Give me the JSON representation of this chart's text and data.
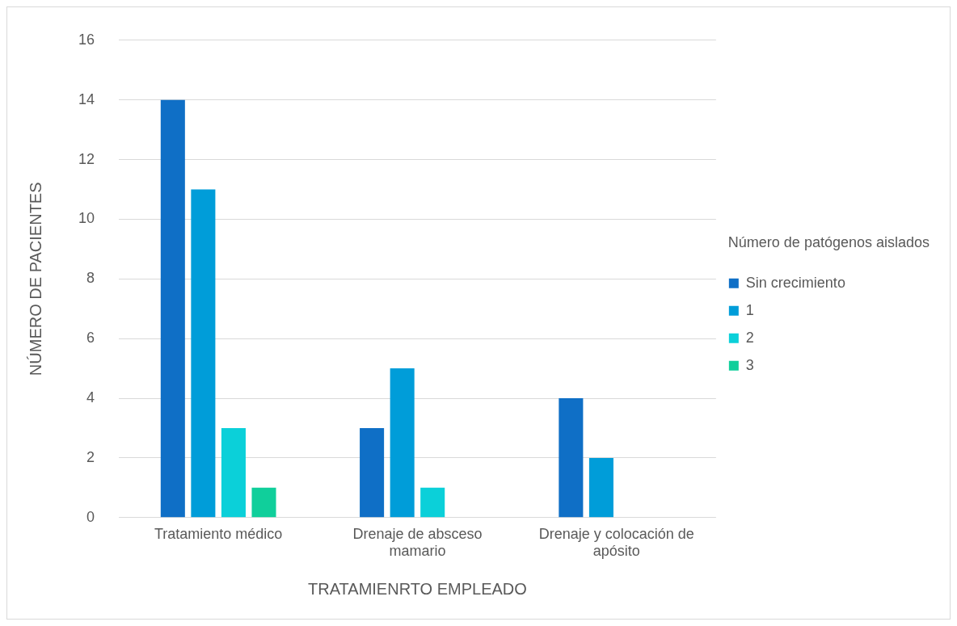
{
  "chart_data": {
    "type": "bar",
    "xlabel": "TRATAMIENRTO EMPLEADO",
    "ylabel": "NÚMERO DE PACIENTES",
    "legend_title": "Número de patógenos aislados",
    "categories": [
      "Tratamiento médico",
      "Drenaje de absceso mamario",
      "Drenaje y colocación de apósito"
    ],
    "series": [
      {
        "name": "Sin crecimiento",
        "color": "#0f6fc6",
        "values": [
          14,
          3,
          4
        ]
      },
      {
        "name": "1",
        "color": "#009dd9",
        "values": [
          11,
          5,
          2
        ]
      },
      {
        "name": "2",
        "color": "#0bd0d9",
        "values": [
          3,
          1,
          0
        ]
      },
      {
        "name": "3",
        "color": "#10cf9b",
        "values": [
          1,
          0,
          0
        ]
      }
    ],
    "ylim": [
      0,
      16
    ],
    "yticks": [
      0,
      2,
      4,
      6,
      8,
      10,
      12,
      14,
      16
    ],
    "grid": "y",
    "legend": "right"
  }
}
